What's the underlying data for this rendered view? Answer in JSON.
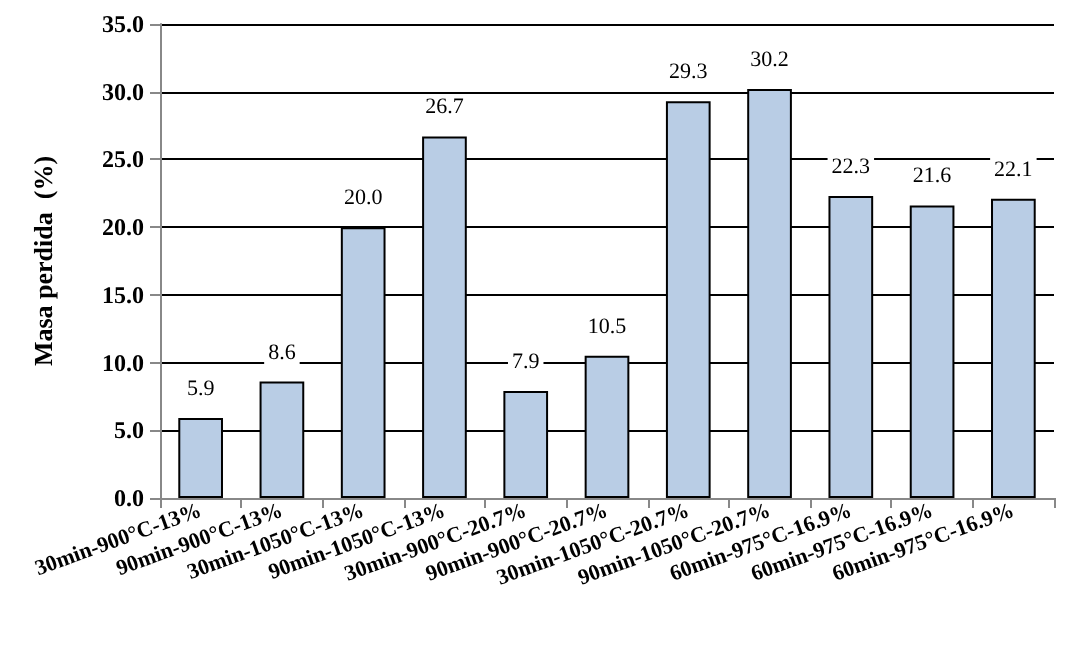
{
  "chart_data": {
    "type": "bar",
    "ylabel": "Masa perdida  (%)",
    "categories": [
      "30min-900°C-13%",
      "90min-900°C-13%",
      "30min-1050°C-13%",
      "90min-1050°C-13%",
      "30min-900°C-20.7%",
      "90min-900°C-20.7%",
      "30min-1050°C-20.7%",
      "90min-1050°C-20.7%",
      "60min-975°C-16.9%",
      "60min-975°C-16.9%",
      "60min-975°C-16.9%"
    ],
    "values": [
      5.9,
      8.6,
      20.0,
      26.7,
      7.9,
      10.5,
      29.3,
      30.2,
      22.3,
      21.6,
      22.1
    ],
    "value_labels": [
      "5.9",
      "8.6",
      "20.0",
      "26.7",
      "7.9",
      "10.5",
      "29.3",
      "30.2",
      "22.3",
      "21.6",
      "22.1"
    ],
    "color": "#b9cde5",
    "ylim": [
      0,
      35
    ],
    "yticks": [
      {
        "value": 0,
        "label": "0.0"
      },
      {
        "value": 5,
        "label": "5.0"
      },
      {
        "value": 10,
        "label": "10.0"
      },
      {
        "value": 15,
        "label": "15.0"
      },
      {
        "value": 20,
        "label": "20.0"
      },
      {
        "value": 25,
        "label": "25.0"
      },
      {
        "value": 30,
        "label": "30.0"
      },
      {
        "value": 35,
        "label": "35.0"
      }
    ],
    "grid": "y"
  }
}
